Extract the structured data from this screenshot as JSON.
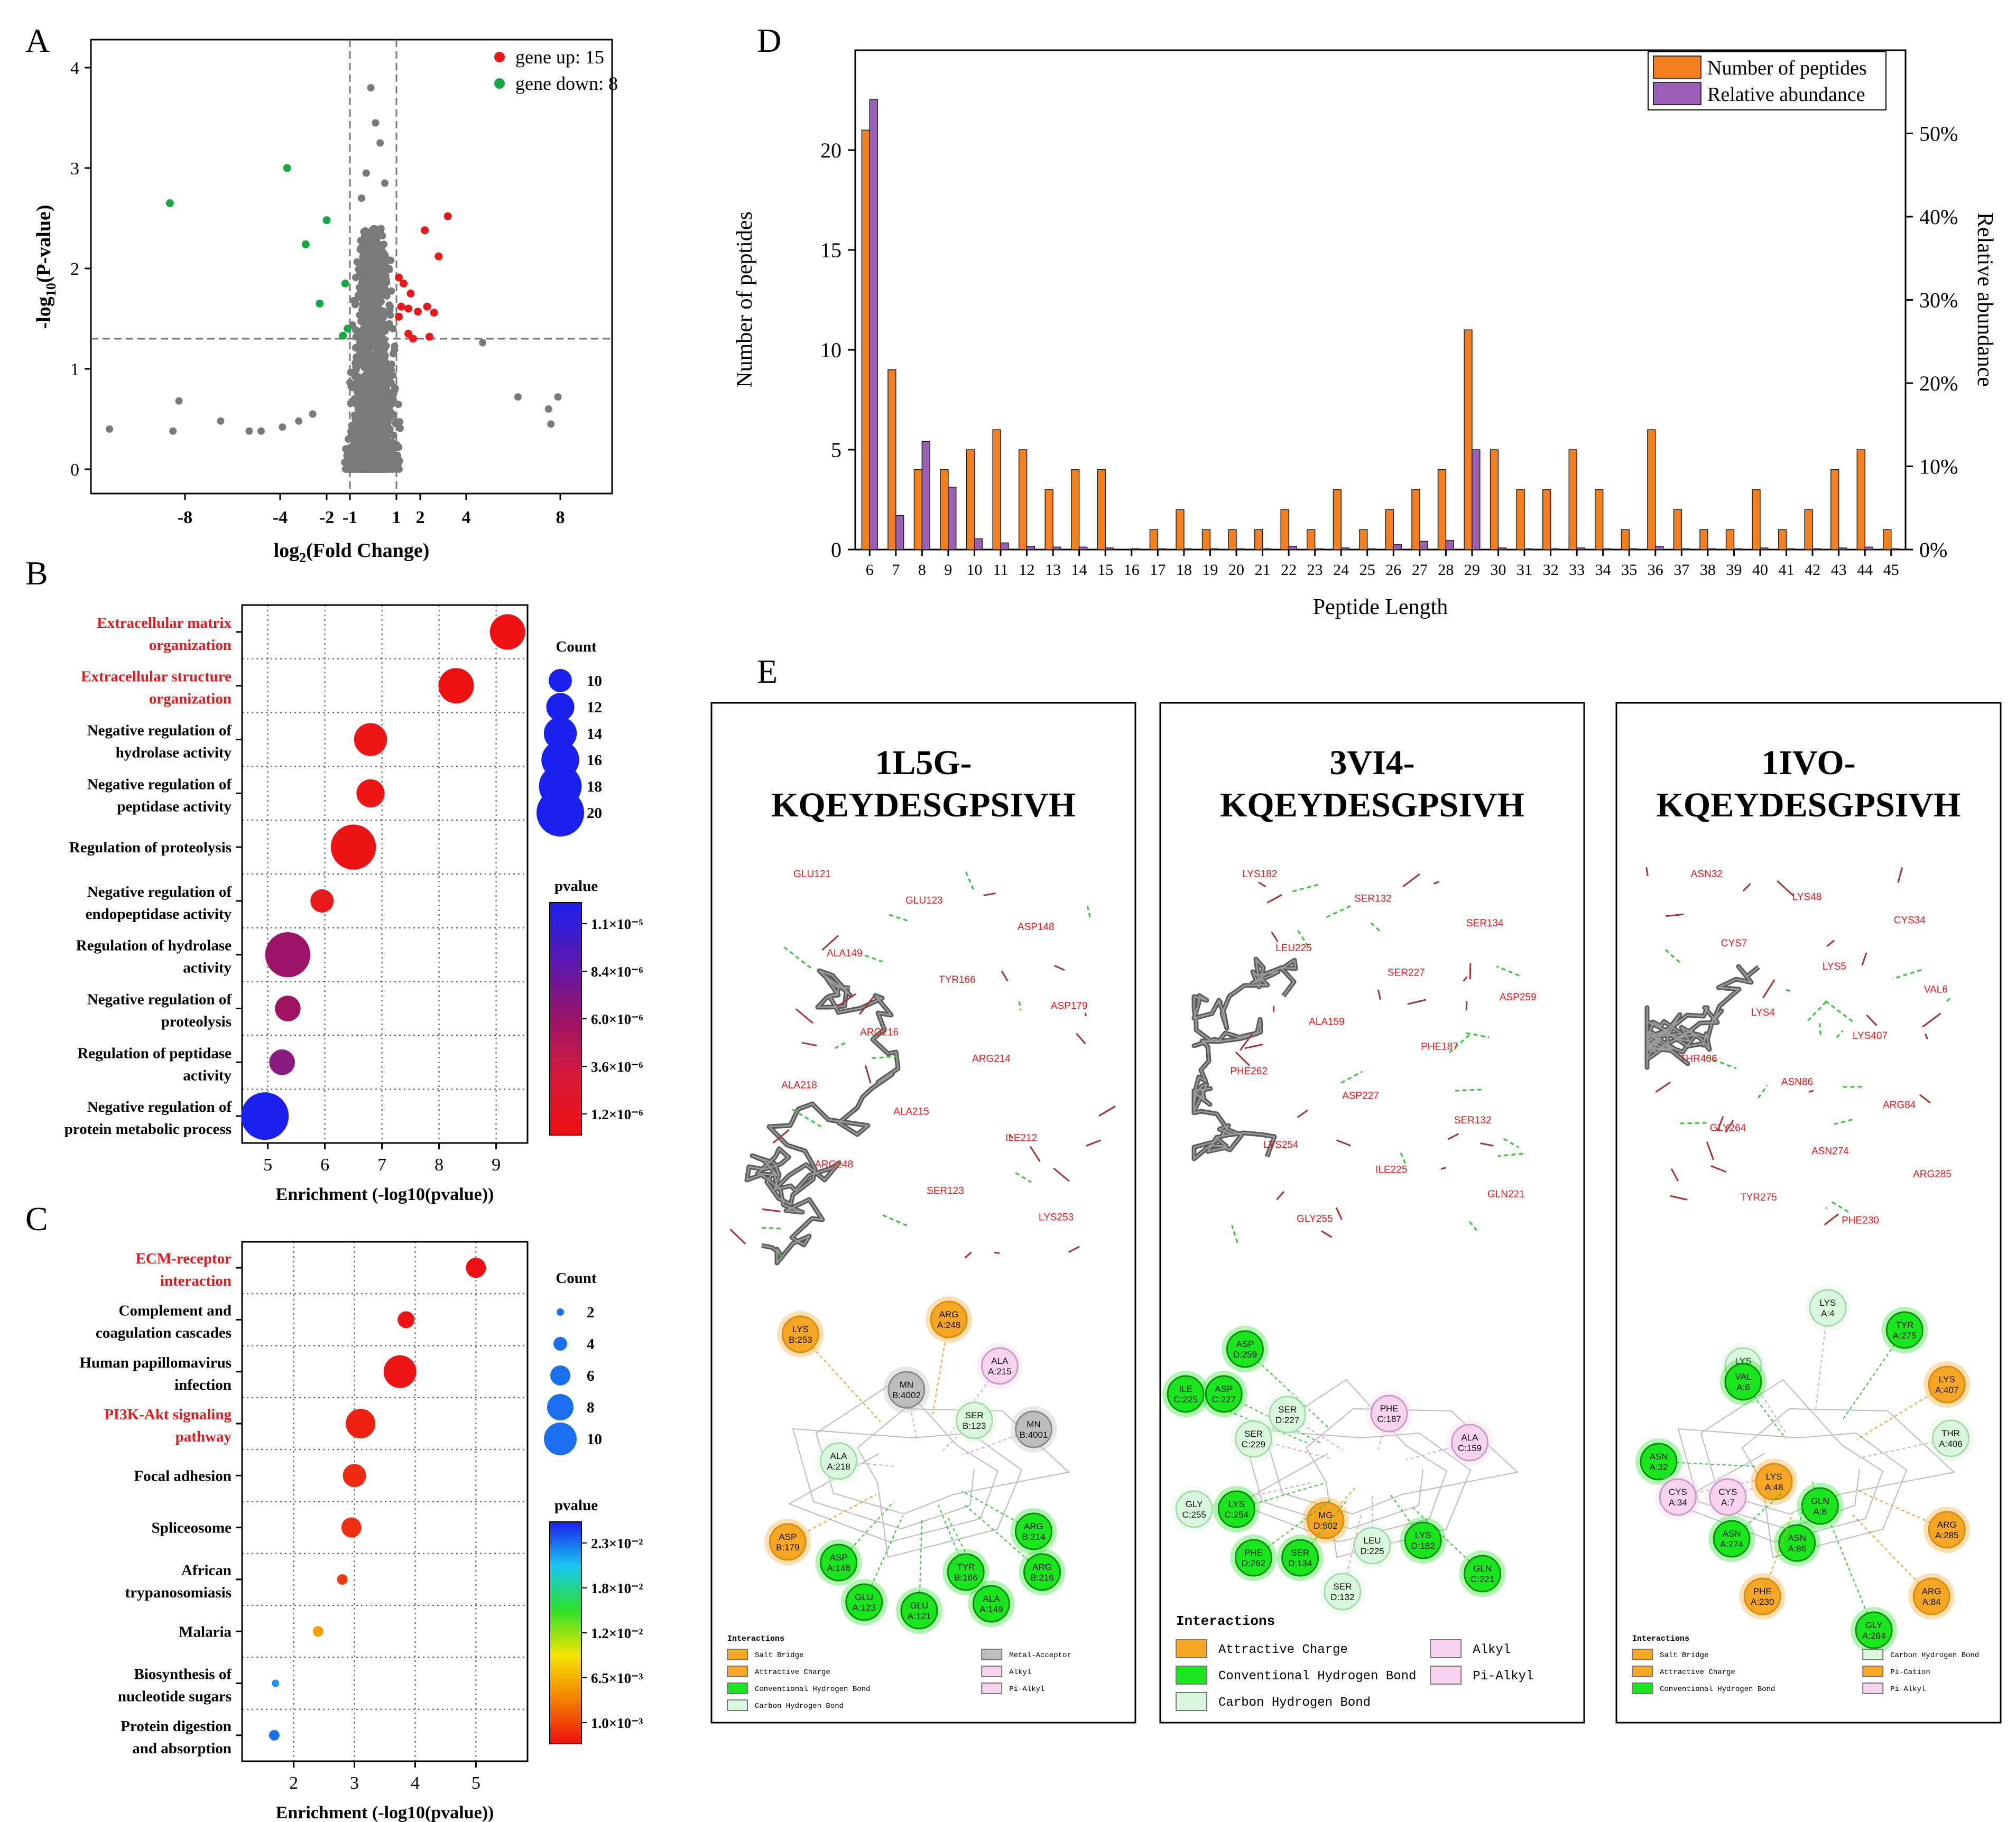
{
  "panels": {
    "A": "A",
    "B": "B",
    "C": "C",
    "D": "D",
    "E": "E"
  },
  "colors": {
    "up": "#e8191b",
    "down": "#16a843",
    "ns": "#7a7a7a",
    "peptides_bar": "#f47f20",
    "abundance_bar": "#9a5fb4",
    "label_red": "#e8191b"
  },
  "chart_data": [
    {
      "id": "A",
      "type": "scatter",
      "xlabel": "log2(Fold Change)",
      "ylabel": "-log10(P-value)",
      "xticks": [
        "-8",
        "-4",
        "-2",
        "-1",
        "1",
        "2",
        "4",
        "8"
      ],
      "yticks": [
        "0",
        "1",
        "2",
        "3",
        "4"
      ],
      "ylim": [
        0,
        4.2
      ],
      "thresholds": {
        "x": [
          -1,
          1
        ],
        "y": 1.3
      },
      "legend": [
        {
          "label": "gene up: 15",
          "color": "#e8191b"
        },
        {
          "label": "gene down: 8",
          "color": "#16a843"
        }
      ],
      "series": [
        {
          "name": "gene up: 15",
          "color": "#e8191b",
          "points": [
            [
              3.2,
              2.52
            ],
            [
              2.2,
              2.38
            ],
            [
              2.8,
              2.12
            ],
            [
              1.1,
              1.91
            ],
            [
              1.3,
              1.85
            ],
            [
              1.6,
              1.75
            ],
            [
              1.2,
              1.62
            ],
            [
              1.5,
              1.6
            ],
            [
              2.3,
              1.62
            ],
            [
              2.6,
              1.56
            ],
            [
              1.9,
              1.57
            ],
            [
              1.1,
              1.52
            ],
            [
              1.5,
              1.35
            ],
            [
              1.7,
              1.3
            ],
            [
              2.4,
              1.32
            ]
          ]
        },
        {
          "name": "gene down: 8",
          "color": "#16a843",
          "points": [
            [
              -8.5,
              2.65
            ],
            [
              -3.7,
              3.0
            ],
            [
              -2.9,
              2.24
            ],
            [
              -2.0,
              2.48
            ],
            [
              -1.2,
              1.85
            ],
            [
              -2.3,
              1.65
            ],
            [
              -1.1,
              1.4
            ],
            [
              -1.3,
              1.33
            ]
          ]
        }
      ],
      "ns_outliers": [
        [
          -10.5,
          0.4
        ],
        [
          -8.2,
          0.68
        ],
        [
          -8.4,
          0.38
        ],
        [
          -6.5,
          0.48
        ],
        [
          -5.3,
          0.38
        ],
        [
          -4.8,
          0.38
        ],
        [
          -3.9,
          0.42
        ],
        [
          -3.2,
          0.48
        ],
        [
          -2.6,
          0.55
        ],
        [
          4.7,
          1.26
        ],
        [
          6.2,
          0.72
        ],
        [
          7.5,
          0.6
        ],
        [
          7.9,
          0.72
        ],
        [
          7.6,
          0.45
        ],
        [
          -0.1,
          3.8
        ],
        [
          0.1,
          3.45
        ],
        [
          0.3,
          3.25
        ],
        [
          -0.3,
          2.95
        ],
        [
          0.5,
          2.85
        ],
        [
          -0.5,
          2.7
        ]
      ]
    },
    {
      "id": "B",
      "type": "scatter",
      "xlabel": "Enrichment (-log10(pvalue))",
      "xticks": [
        "5",
        "6",
        "7",
        "8",
        "9"
      ],
      "xlim": [
        4.55,
        9.55
      ],
      "legend_count_title": "Count",
      "legend_count": [
        10,
        12,
        14,
        16,
        18,
        20
      ],
      "legend_pvalue_title": "pvalue",
      "colorbar_ticks": [
        "1.1×10⁻⁵",
        "8.4×10⁻⁶",
        "6.0×10⁻⁶",
        "3.6×10⁻⁶",
        "1.2×10⁻⁶"
      ],
      "terms": [
        {
          "line1": "Extracellular matrix",
          "line2": "organization",
          "x": 9.2,
          "count": 15,
          "color": "#ee1010",
          "highlight": true
        },
        {
          "line1": "Extracellular structure",
          "line2": "organization",
          "x": 8.3,
          "count": 15,
          "color": "#ee1010",
          "highlight": true
        },
        {
          "line1": "Negative regulation of",
          "line2": "hydrolase activity",
          "x": 6.8,
          "count": 14,
          "color": "#ee1515",
          "highlight": false
        },
        {
          "line1": "Negative regulation of",
          "line2": "peptidase activity",
          "x": 6.8,
          "count": 12,
          "color": "#ee1515",
          "highlight": false
        },
        {
          "line1": "Regulation of proteolysis",
          "line2": "",
          "x": 6.5,
          "count": 19,
          "color": "#ee1313",
          "highlight": false
        },
        {
          "line1": "Negative regulation of",
          "line2": "endopeptidase activity",
          "x": 5.95,
          "count": 10,
          "color": "#e81a1a",
          "highlight": false
        },
        {
          "line1": "Regulation of hydrolase",
          "line2": "activity",
          "x": 5.35,
          "count": 19,
          "color": "#9b1468",
          "highlight": false
        },
        {
          "line1": "Negative regulation of",
          "line2": "proteolysis",
          "x": 5.35,
          "count": 11,
          "color": "#a0145f",
          "highlight": false
        },
        {
          "line1": "Regulation of peptidase",
          "line2": "activity",
          "x": 5.25,
          "count": 11,
          "color": "#8a1b7f",
          "highlight": false
        },
        {
          "line1": "Negative regulation of",
          "line2": "protein metabolic process",
          "x": 4.95,
          "count": 20,
          "color": "#1a20ee",
          "highlight": false
        }
      ]
    },
    {
      "id": "C",
      "type": "scatter",
      "xlabel": "Enrichment (-log10(pvalue))",
      "xticks": [
        "2",
        "3",
        "4",
        "5"
      ],
      "xlim": [
        1.15,
        5.85
      ],
      "legend_count_title": "Count",
      "legend_count": [
        2,
        4,
        6,
        8,
        10
      ],
      "legend_pvalue_title": "pvalue",
      "colorbar_ticks": [
        "2.3×10⁻²",
        "1.8×10⁻²",
        "1.2×10⁻²",
        "6.5×10⁻³",
        "1.0×10⁻³"
      ],
      "terms": [
        {
          "line1": "ECM-receptor",
          "line2": "interaction",
          "x": 5.0,
          "count": 6,
          "color": "#ee1010",
          "highlight": true
        },
        {
          "line1": "Complement and",
          "line2": "coagulation cascades",
          "x": 3.85,
          "count": 5,
          "color": "#ee1515",
          "highlight": false
        },
        {
          "line1": "Human papillomavirus",
          "line2": "infection",
          "x": 3.75,
          "count": 10,
          "color": "#ee1515",
          "highlight": false
        },
        {
          "line1": "PI3K-Akt signaling",
          "line2": "pathway",
          "x": 3.1,
          "count": 9,
          "color": "#ee2010",
          "highlight": true
        },
        {
          "line1": "Focal adhesion",
          "line2": "",
          "x": 3.0,
          "count": 7,
          "color": "#ee2a10",
          "highlight": false
        },
        {
          "line1": "Spliceosome",
          "line2": "",
          "x": 2.95,
          "count": 6,
          "color": "#ee3010",
          "highlight": false
        },
        {
          "line1": "African",
          "line2": "trypanosomiasis",
          "x": 2.8,
          "count": 3,
          "color": "#ee3a10",
          "highlight": false
        },
        {
          "line1": "Malaria",
          "line2": "",
          "x": 2.4,
          "count": 3,
          "color": "#f5a000",
          "highlight": false
        },
        {
          "line1": "Biosynthesis of",
          "line2": "nucleotide sugars",
          "x": 1.7,
          "count": 2,
          "color": "#1e90ff",
          "highlight": false
        },
        {
          "line1": "Protein digestion",
          "line2": "and absorption",
          "x": 1.68,
          "count": 3,
          "color": "#1a6ef0",
          "highlight": false
        }
      ]
    },
    {
      "id": "D",
      "type": "bar",
      "xlabel": "Peptide Length",
      "ylabel": "Number of peptides",
      "y2label": "Relative abundance",
      "ylim": [
        0,
        25
      ],
      "y2lim": [
        0,
        0.6
      ],
      "yticks": [
        "0",
        "5",
        "10",
        "15",
        "20"
      ],
      "y2ticks": [
        "0%",
        "10%",
        "20%",
        "30%",
        "40%",
        "50%"
      ],
      "categories": [
        "6",
        "7",
        "8",
        "9",
        "10",
        "11",
        "12",
        "13",
        "14",
        "15",
        "16",
        "17",
        "18",
        "19",
        "20",
        "21",
        "22",
        "23",
        "24",
        "25",
        "26",
        "27",
        "28",
        "29",
        "30",
        "31",
        "32",
        "33",
        "34",
        "35",
        "36",
        "37",
        "38",
        "39",
        "40",
        "41",
        "42",
        "43",
        "44",
        "45"
      ],
      "series": [
        {
          "name": "Number of peptides",
          "color": "#f47f20",
          "values": [
            21,
            9,
            4,
            4,
            5,
            6,
            5,
            3,
            4,
            4,
            0,
            1,
            2,
            1,
            1,
            1,
            2,
            1,
            3,
            1,
            2,
            3,
            4,
            11,
            5,
            3,
            3,
            5,
            3,
            1,
            6,
            2,
            1,
            1,
            3,
            1,
            2,
            4,
            5,
            1
          ]
        },
        {
          "name": "Relative abundance",
          "color": "#9a5fb4",
          "values": [
            0.541,
            0.041,
            0.13,
            0.075,
            0.013,
            0.008,
            0.004,
            0.003,
            0.003,
            0.002,
            0.001,
            0.001,
            0.001,
            0.001,
            0.001,
            0.001,
            0.004,
            0.001,
            0.002,
            0.001,
            0.006,
            0.01,
            0.011,
            0.12,
            0.002,
            0.001,
            0.001,
            0.002,
            0.001,
            0.001,
            0.004,
            0.001,
            0.001,
            0.001,
            0.002,
            0.001,
            0.001,
            0.002,
            0.003,
            0.001
          ]
        }
      ]
    }
  ],
  "docking": [
    {
      "title_line1": "1L5G-",
      "title_line2": "KQEYDESGPSIVH",
      "residue_labels_3d": [
        "GLU121",
        "GLU123",
        "ASP148",
        "ALA149",
        "TYR166",
        "ASP179",
        "ARG216",
        "ARG214",
        "ALA218",
        "ALA215",
        "ILE212",
        "ARG248",
        "SER123",
        "LYS253"
      ],
      "nodes": [
        {
          "l1": "LYS",
          "l2": "B:253",
          "t": "sb"
        },
        {
          "l1": "ARG",
          "l2": "A:248",
          "t": "sb"
        },
        {
          "l1": "ALA",
          "l2": "A:215",
          "t": "al"
        },
        {
          "l1": "MN",
          "l2": "B:4002",
          "t": "mn"
        },
        {
          "l1": "SER",
          "l2": "B:123",
          "t": "ch"
        },
        {
          "l1": "MN",
          "l2": "B:4001",
          "t": "mn"
        },
        {
          "l1": "ALA",
          "l2": "A:218",
          "t": "ch"
        },
        {
          "l1": "ASP",
          "l2": "B:179",
          "t": "sb"
        },
        {
          "l1": "ASP",
          "l2": "A:148",
          "t": "hb"
        },
        {
          "l1": "ARG",
          "l2": "B:214",
          "t": "hb"
        },
        {
          "l1": "TYR",
          "l2": "B:166",
          "t": "hb"
        },
        {
          "l1": "ARG",
          "l2": "B:216",
          "t": "hb"
        },
        {
          "l1": "GLU",
          "l2": "A:123",
          "t": "hb"
        },
        {
          "l1": "GLU",
          "l2": "A:121",
          "t": "hb"
        },
        {
          "l1": "ALA",
          "l2": "A:149",
          "t": "hb"
        }
      ],
      "legend_title": "Interactions",
      "legend": [
        {
          "label": "Salt Bridge",
          "t": "sb"
        },
        {
          "label": "Metal-Acceptor",
          "t": "mn"
        },
        {
          "label": "Attractive Charge",
          "t": "sb"
        },
        {
          "label": "Alkyl",
          "t": "al"
        },
        {
          "label": "Conventional Hydrogen Bond",
          "t": "hb"
        },
        {
          "label": "Pi-Alkyl",
          "t": "al"
        },
        {
          "label": "Carbon Hydrogen Bond",
          "t": "ch"
        }
      ]
    },
    {
      "title_line1": "3VI4-",
      "title_line2": "KQEYDESGPSIVH",
      "residue_labels_3d": [
        "LYS182",
        "SER132",
        "SER134",
        "LEU225",
        "SER227",
        "ASP259",
        "ALA159",
        "PHE187",
        "PHE262",
        "ASP227",
        "SER132",
        "LYS254",
        "ILE225",
        "GLN221",
        "GLY255"
      ],
      "nodes": [
        {
          "l1": "ASP",
          "l2": "D:259",
          "t": "hb"
        },
        {
          "l1": "ILE",
          "l2": "C:225",
          "t": "hb"
        },
        {
          "l1": "ASP",
          "l2": "C:227",
          "t": "hb"
        },
        {
          "l1": "SER",
          "l2": "D:227",
          "t": "ch"
        },
        {
          "l1": "SER",
          "l2": "C:229",
          "t": "ch"
        },
        {
          "l1": "PHE",
          "l2": "C:187",
          "t": "al"
        },
        {
          "l1": "ALA",
          "l2": "C:159",
          "t": "al"
        },
        {
          "l1": "GLY",
          "l2": "C:255",
          "t": "ch"
        },
        {
          "l1": "LYS",
          "l2": "C:254",
          "t": "hb"
        },
        {
          "l1": "MG",
          "l2": "D:502",
          "t": "sb"
        },
        {
          "l1": "LEU",
          "l2": "D:225",
          "t": "ch"
        },
        {
          "l1": "LYS",
          "l2": "D:182",
          "t": "hb"
        },
        {
          "l1": "PHE",
          "l2": "D:262",
          "t": "hb"
        },
        {
          "l1": "SER",
          "l2": "D:134",
          "t": "hb"
        },
        {
          "l1": "GLN",
          "l2": "C:221",
          "t": "hb"
        },
        {
          "l1": "SER",
          "l2": "D:132",
          "t": "ch"
        }
      ],
      "legend_title": "Interactions",
      "legend": [
        {
          "label": "Attractive Charge",
          "t": "sb"
        },
        {
          "label": "Alkyl",
          "t": "al"
        },
        {
          "label": "Conventional Hydrogen Bond",
          "t": "hb"
        },
        {
          "label": "Pi-Alkyl",
          "t": "al"
        },
        {
          "label": "Carbon Hydrogen Bond",
          "t": "ch"
        }
      ]
    },
    {
      "title_line1": "1IVO-",
      "title_line2": "KQEYDESGPSIVH",
      "residue_labels_3d": [
        "ASN32",
        "LYS48",
        "CYS34",
        "CYS7",
        "LYS5",
        "VAL6",
        "LYS4",
        "LYS407",
        "THR406",
        "ASN86",
        "ARG84",
        "GLY264",
        "ASN274",
        "ARG285",
        "TYR275",
        "PHE230"
      ],
      "nodes": [
        {
          "l1": "LYS",
          "l2": "A:4",
          "t": "ch"
        },
        {
          "l1": "TYR",
          "l2": "A:275",
          "t": "hb"
        },
        {
          "l1": "LYS",
          "l2": "A:5",
          "t": "ch"
        },
        {
          "l1": "VAL",
          "l2": "A:6",
          "t": "hb"
        },
        {
          "l1": "LYS",
          "l2": "A:407",
          "t": "sb"
        },
        {
          "l1": "THR",
          "l2": "A:406",
          "t": "ch"
        },
        {
          "l1": "ASN",
          "l2": "A:32",
          "t": "hb"
        },
        {
          "l1": "CYS",
          "l2": "A:34",
          "t": "al"
        },
        {
          "l1": "CYS",
          "l2": "A:7",
          "t": "al"
        },
        {
          "l1": "LYS",
          "l2": "A:48",
          "t": "sb"
        },
        {
          "l1": "GLN",
          "l2": "A:8",
          "t": "hb"
        },
        {
          "l1": "ASN",
          "l2": "A:274",
          "t": "hb"
        },
        {
          "l1": "ASN",
          "l2": "A:86",
          "t": "hb"
        },
        {
          "l1": "ARG",
          "l2": "A:285",
          "t": "sb"
        },
        {
          "l1": "PHE",
          "l2": "A:230",
          "t": "sb"
        },
        {
          "l1": "ARG",
          "l2": "A:84",
          "t": "sb"
        },
        {
          "l1": "GLY",
          "l2": "A:264",
          "t": "hb"
        }
      ],
      "legend_title": "Interactions",
      "legend": [
        {
          "label": "Salt Bridge",
          "t": "sb"
        },
        {
          "label": "Carbon Hydrogen Bond",
          "t": "ch"
        },
        {
          "label": "Attractive Charge",
          "t": "sb"
        },
        {
          "label": "Pi-Cation",
          "t": "sb"
        },
        {
          "label": "Conventional Hydrogen Bond",
          "t": "hb"
        },
        {
          "label": "Pi-Alkyl",
          "t": "al"
        }
      ]
    }
  ]
}
